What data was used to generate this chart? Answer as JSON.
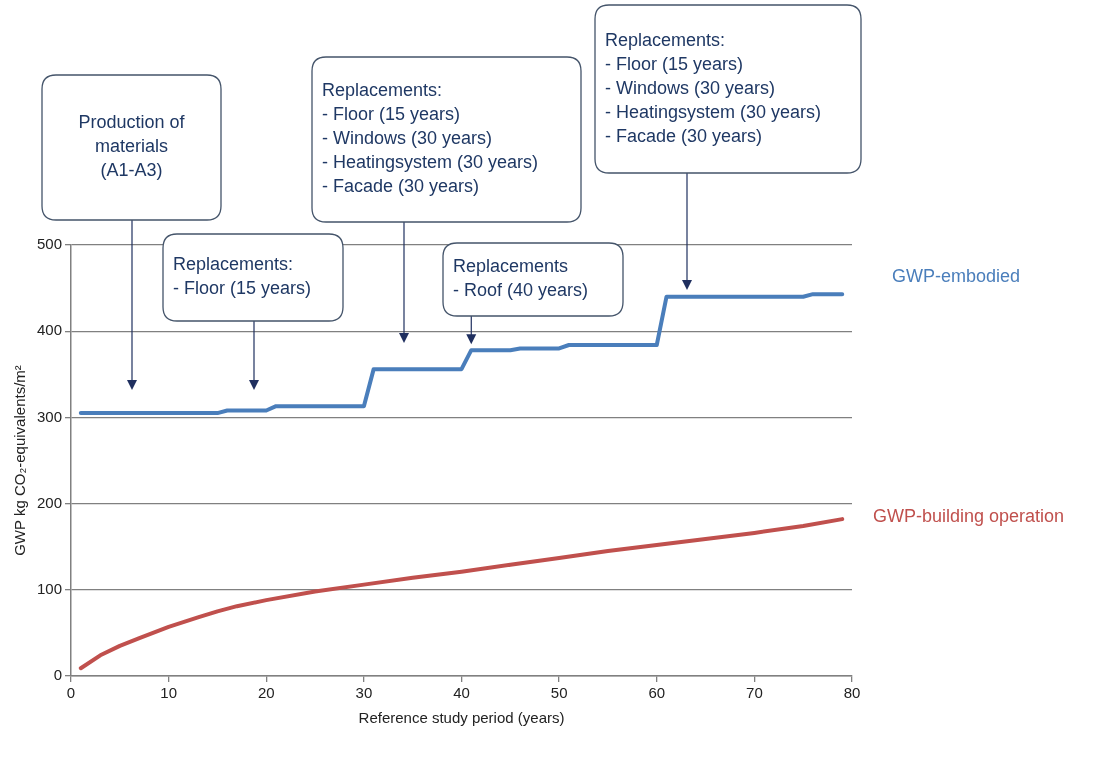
{
  "chart_data": {
    "type": "line",
    "xlabel": "Reference study period (years)",
    "ylabel": "GWP kg CO₂-equivalents/m²",
    "xlim": [
      0,
      80
    ],
    "xticks": [
      0,
      10,
      20,
      30,
      40,
      50,
      60,
      70,
      80
    ],
    "ylim": [
      0,
      500
    ],
    "yticks": [
      0,
      100,
      200,
      300,
      400,
      500
    ],
    "grid": "y",
    "legend": false,
    "marker": "none",
    "line_style": "solid",
    "series": [
      {
        "name": "GWP-embodied",
        "color": "#4a7ebb",
        "x": [
          1,
          15,
          16,
          20,
          21,
          30,
          31,
          40,
          41,
          45,
          46,
          50,
          51,
          60,
          61,
          75,
          76,
          79
        ],
        "values": [
          305,
          305,
          308,
          308,
          313,
          313,
          356,
          356,
          378,
          378,
          380,
          380,
          384,
          384,
          440,
          440,
          443,
          443
        ]
      },
      {
        "name": "GWP-building operation",
        "color": "#c0504d",
        "x": [
          1,
          3,
          5,
          7,
          10,
          13,
          15,
          17,
          20,
          25,
          30,
          35,
          40,
          45,
          50,
          55,
          60,
          65,
          70,
          75,
          79
        ],
        "values": [
          9,
          24,
          35,
          44,
          57,
          68,
          75,
          81,
          88,
          98,
          106,
          114,
          121,
          129,
          137,
          145,
          152,
          159,
          166,
          174,
          182
        ]
      }
    ],
    "annotations": [
      "Production of\nmaterials\n(A1-A3)",
      "Replacements:\n- Floor (15 years)",
      "Replacements:\n- Floor (15 years)\n- Windows (30 years)\n- Heatingsystem (30 years)\n- Facade (30 years)",
      {
        "text": "Replacements\n- Roof (40 years)",
        "x": 41,
        "y": 378
      },
      "Replacements:\n- Floor (15 years)\n- Windows (30 years)\n- Heatingsystem (30 years)\n- Facade (30 years)"
    ]
  }
}
